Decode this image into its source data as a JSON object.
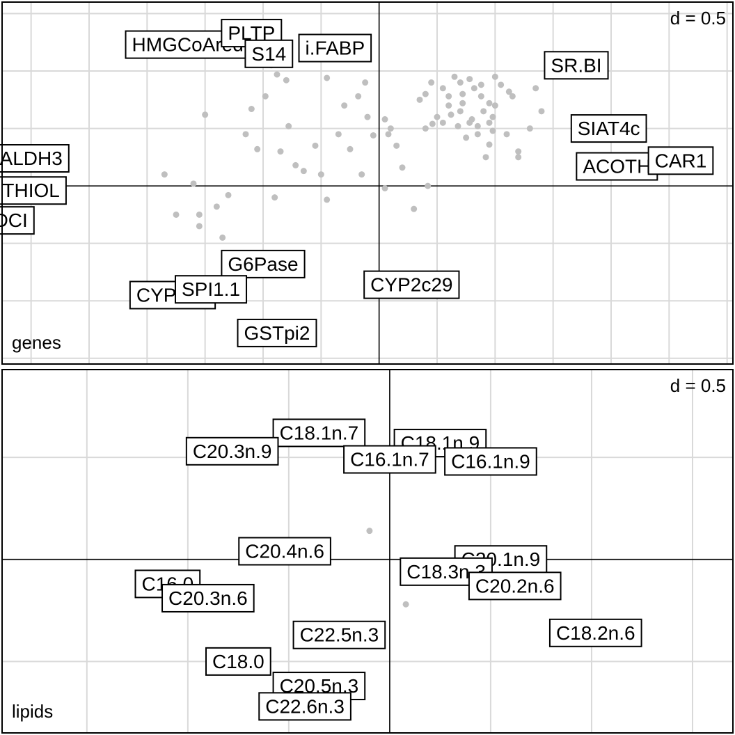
{
  "chart_data": [
    {
      "type": "scatter",
      "panel_title": "genes",
      "grid_scale_text": "d = 0.5",
      "grid_step": 0.5,
      "xlim": [
        -3.25,
        3.05
      ],
      "ylim": [
        -1.55,
        1.6
      ],
      "points": [
        [
          -1.5,
          0.62
        ],
        [
          -1.15,
          0.45
        ],
        [
          -1.1,
          0.67
        ],
        [
          -1.05,
          0.32
        ],
        [
          -0.98,
          0.78
        ],
        [
          -0.93,
          1.05
        ],
        [
          -0.88,
          0.97
        ],
        [
          -0.8,
          0.92
        ],
        [
          -0.78,
          0.52
        ],
        [
          -0.85,
          0.3
        ],
        [
          -0.72,
          0.18
        ],
        [
          -0.65,
          0.13
        ],
        [
          -0.55,
          0.35
        ],
        [
          -0.5,
          0.1
        ],
        [
          -0.45,
          0.94
        ],
        [
          -0.35,
          0.45
        ],
        [
          -0.3,
          0.7
        ],
        [
          -0.25,
          0.32
        ],
        [
          -0.18,
          0.78
        ],
        [
          -0.12,
          0.9
        ],
        [
          -0.1,
          0.6
        ],
        [
          -0.05,
          0.44
        ],
        [
          0.1,
          0.5
        ],
        [
          0.2,
          0.16
        ],
        [
          0.35,
          0.75
        ],
        [
          0.4,
          0.5
        ],
        [
          0.46,
          0.54
        ],
        [
          0.42,
          0.0
        ],
        [
          0.3,
          -0.2
        ],
        [
          0.05,
          -0.02
        ],
        [
          -0.45,
          -0.12
        ],
        [
          -0.9,
          -0.1
        ],
        [
          -1.3,
          -0.08
        ],
        [
          -1.6,
          0.02
        ],
        [
          -1.4,
          -0.18
        ],
        [
          -1.55,
          -0.35
        ],
        [
          -1.35,
          -0.45
        ],
        [
          -1.55,
          -0.25
        ],
        [
          -1.85,
          0.1
        ],
        [
          -1.75,
          -0.25
        ],
        [
          0.05,
          0.58
        ],
        [
          0.08,
          0.45
        ],
        [
          0.15,
          0.35
        ],
        [
          -0.15,
          0.1
        ],
        [
          0.6,
          0.7
        ],
        [
          0.7,
          0.65
        ],
        [
          0.8,
          0.58
        ],
        [
          0.6,
          0.78
        ],
        [
          0.72,
          0.8
        ],
        [
          0.55,
          0.85
        ],
        [
          0.7,
          0.9
        ],
        [
          0.78,
          0.93
        ],
        [
          0.65,
          0.95
        ],
        [
          0.82,
          0.85
        ],
        [
          0.88,
          0.78
        ],
        [
          0.95,
          0.72
        ],
        [
          0.9,
          0.65
        ],
        [
          0.98,
          0.6
        ],
        [
          0.85,
          0.45
        ],
        [
          0.75,
          0.42
        ],
        [
          0.95,
          0.36
        ],
        [
          0.92,
          0.25
        ],
        [
          1.1,
          0.45
        ],
        [
          1.2,
          0.3
        ],
        [
          1.3,
          0.5
        ],
        [
          1.05,
          0.88
        ],
        [
          1.0,
          0.95
        ],
        [
          1.12,
          0.82
        ],
        [
          0.45,
          0.9
        ],
        [
          0.4,
          0.8
        ],
        [
          0.62,
          0.62
        ],
        [
          0.78,
          0.55
        ],
        [
          1.0,
          0.7
        ],
        [
          1.35,
          0.85
        ],
        [
          1.4,
          0.65
        ],
        [
          1.15,
          0.78
        ],
        [
          0.88,
          0.88
        ],
        [
          1.2,
          0.25
        ],
        [
          0.5,
          0.6
        ],
        [
          0.55,
          0.55
        ],
        [
          0.95,
          0.55
        ],
        [
          0.98,
          0.48
        ],
        [
          0.68,
          0.52
        ],
        [
          0.85,
          0.52
        ],
        [
          0.72,
          0.72
        ]
      ],
      "labels": [
        {
          "text": "HMGCoAred",
          "x": -1.65,
          "y": 1.23
        },
        {
          "text": "PLTP",
          "x": -1.1,
          "y": 1.33
        },
        {
          "text": "S14",
          "x": -0.95,
          "y": 1.15
        },
        {
          "text": "i.FABP",
          "x": -0.38,
          "y": 1.2
        },
        {
          "text": "SR.BI",
          "x": 1.7,
          "y": 1.05
        },
        {
          "text": "SIAT4c",
          "x": 1.98,
          "y": 0.5
        },
        {
          "text": "ACOTH",
          "x": 2.05,
          "y": 0.17
        },
        {
          "text": "CAR1",
          "x": 2.6,
          "y": 0.22
        },
        {
          "text": "ALDH3",
          "x": -3.0,
          "y": 0.24
        },
        {
          "text": "THIOL",
          "x": -3.0,
          "y": -0.04
        },
        {
          "text": "PMDCI",
          "x": -3.3,
          "y": -0.3
        },
        {
          "text": "G6Pase",
          "x": -1.0,
          "y": -0.68
        },
        {
          "text": "CYP8b1",
          "x": -1.78,
          "y": -0.95
        },
        {
          "text": "SPI1.1",
          "x": -1.45,
          "y": -0.9
        },
        {
          "text": "CYP2c29",
          "x": 0.28,
          "y": -0.86
        },
        {
          "text": "GSTpi2",
          "x": -0.88,
          "y": -1.28
        }
      ]
    },
    {
      "type": "scatter",
      "panel_title": "lipids",
      "grid_scale_text": "d = 0.5",
      "grid_step": 0.5,
      "xlim": [
        -1.92,
        1.7
      ],
      "ylim": [
        -0.85,
        0.93
      ],
      "points": [
        [
          -0.2,
          0.44
        ],
        [
          -0.1,
          0.14
        ],
        [
          0.08,
          -0.22
        ]
      ],
      "labels": [
        {
          "text": "C18.1n.7",
          "x": -0.35,
          "y": 0.62
        },
        {
          "text": "C20.3n.9",
          "x": -0.78,
          "y": 0.53
        },
        {
          "text": "C18.1n.9",
          "x": 0.25,
          "y": 0.57
        },
        {
          "text": "C16.1n.7",
          "x": 0.0,
          "y": 0.49
        },
        {
          "text": "C16.1n.9",
          "x": 0.5,
          "y": 0.48
        },
        {
          "text": "C20.4n.6",
          "x": -0.52,
          "y": 0.04
        },
        {
          "text": "C20.1n.9",
          "x": 0.55,
          "y": 0.0
        },
        {
          "text": "C18.3n.3",
          "x": 0.28,
          "y": -0.06
        },
        {
          "text": "C20.2n.6",
          "x": 0.62,
          "y": -0.13
        },
        {
          "text": "C16.0",
          "x": -1.1,
          "y": -0.12
        },
        {
          "text": "C20.3n.6",
          "x": -0.9,
          "y": -0.19
        },
        {
          "text": "C22.5n.3",
          "x": -0.25,
          "y": -0.37
        },
        {
          "text": "C18.2n.6",
          "x": 1.02,
          "y": -0.36
        },
        {
          "text": "C18.0",
          "x": -0.75,
          "y": -0.5
        },
        {
          "text": "C20.5n.3",
          "x": -0.35,
          "y": -0.62
        },
        {
          "text": "C22.6n.3",
          "x": -0.42,
          "y": -0.72
        }
      ]
    }
  ]
}
